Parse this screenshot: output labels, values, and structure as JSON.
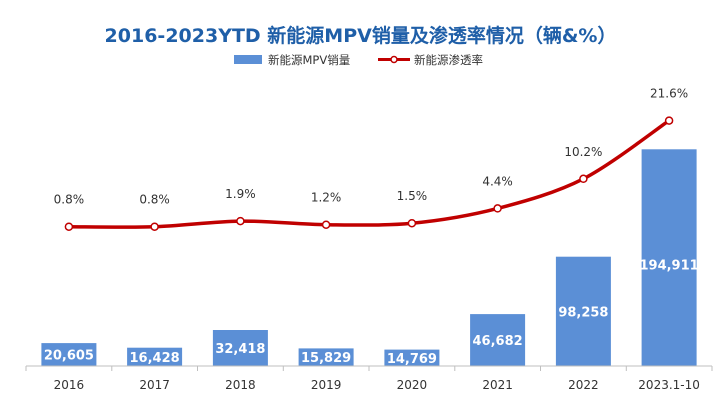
{
  "chart_data": {
    "type": "bar",
    "title": "2016-2023YTD 新能源MPV销量及渗透率情况（辆&%）",
    "categories": [
      "2016",
      "2017",
      "2018",
      "2019",
      "2020",
      "2021",
      "2022",
      "2023.1-10"
    ],
    "series": [
      {
        "name": "新能源MPV销量",
        "type": "bar",
        "axis": "left",
        "values": [
          20605,
          16428,
          32418,
          15829,
          14769,
          46682,
          98258,
          194911
        ],
        "labels": [
          "20,605",
          "16,428",
          "32,418",
          "15,829",
          "14,769",
          "46,682",
          "98,258",
          "194,911"
        ]
      },
      {
        "name": "新能源渗透率",
        "type": "line",
        "axis": "right",
        "values": [
          0.8,
          0.8,
          1.9,
          1.2,
          1.5,
          4.4,
          10.2,
          21.6
        ],
        "labels": [
          "0.8%",
          "0.8%",
          "1.9%",
          "1.2%",
          "1.5%",
          "4.4%",
          "10.2%",
          "21.6%"
        ]
      }
    ],
    "ylim_left": [
      0,
      250000
    ],
    "ylim_right": [
      -26.5,
      28
    ],
    "legend_position": "top-center",
    "grid": false
  },
  "colors": {
    "title": "#1f5fa8",
    "bar": "#5b8fd6",
    "line": "#c00000",
    "marker_fill": "#ffffff",
    "axis": "#bfbfbf"
  }
}
